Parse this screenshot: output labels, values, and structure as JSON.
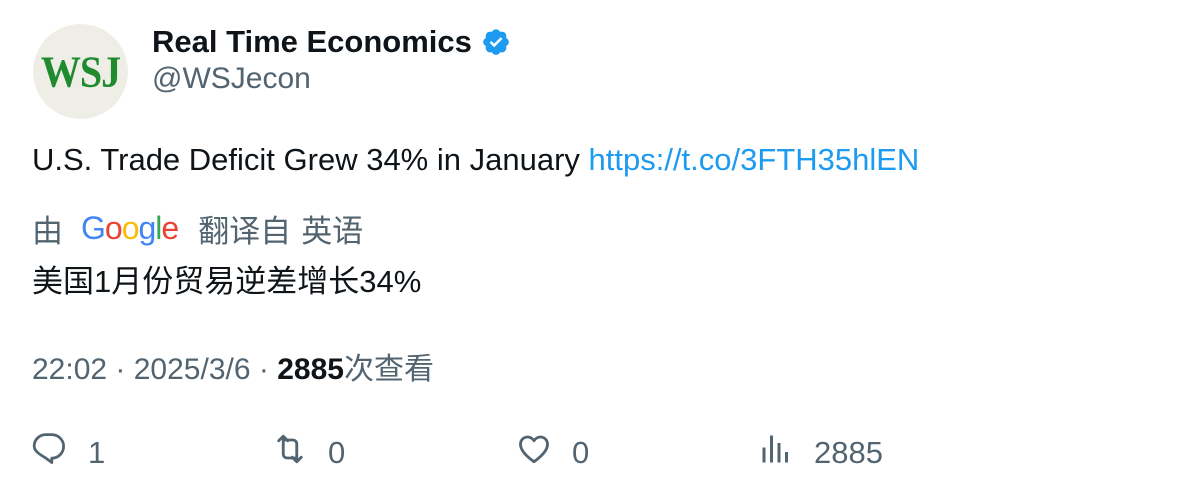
{
  "author": {
    "avatar_text": "WSJ",
    "display_name": "Real Time Economics",
    "handle": "@WSJecon",
    "verified_icon": "verified-badge-icon"
  },
  "tweet": {
    "text": "U.S. Trade Deficit Grew 34% in January ",
    "link": "https://t.co/3FTH35hlEN"
  },
  "translation": {
    "prefix": "由",
    "provider_letters": [
      "G",
      "o",
      "o",
      "g",
      "l",
      "e"
    ],
    "from_label": "翻译自",
    "language": "英语",
    "text": "美国1月份贸易逆差增长34%"
  },
  "meta": {
    "time": "22:02",
    "separator": " · ",
    "date": "2025/3/6",
    "views_count": "2885",
    "views_label": "次查看"
  },
  "actions": {
    "reply_count": "1",
    "retweet_count": "0",
    "like_count": "0",
    "views_count": "2885"
  },
  "colors": {
    "link": "#1d9bf0",
    "muted": "#536471",
    "text": "#0f1419",
    "verified": "#1d9bf0",
    "wsj_green": "#1f8a2e"
  }
}
